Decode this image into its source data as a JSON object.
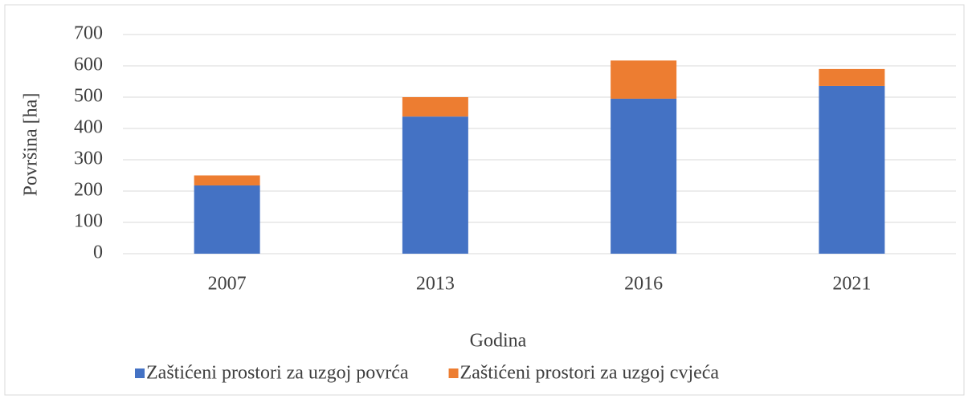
{
  "chart_data": {
    "type": "stacked_bar",
    "x_label": "Godina",
    "y_label": "Površina [ha]",
    "categories": [
      "2007",
      "2013",
      "2016",
      "2021"
    ],
    "series": [
      {
        "name": "Zaštićeni prostori za uzgoj povrća",
        "color": "#4472c4",
        "values": [
          218,
          438,
          495,
          536
        ]
      },
      {
        "name": "Zaštićeni prostori za uzgoj cvjeća",
        "color": "#ed7d31",
        "values": [
          32,
          62,
          122,
          54
        ]
      }
    ],
    "ylim": [
      0,
      700
    ],
    "yticks": [
      0,
      100,
      200,
      300,
      400,
      500,
      600,
      700
    ],
    "grid": true,
    "legend": "bottom"
  }
}
